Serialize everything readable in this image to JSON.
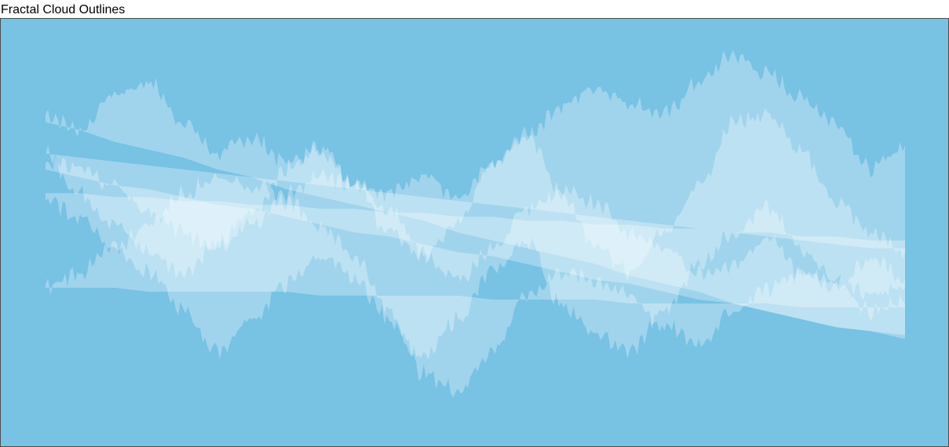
{
  "title": "Fractal Cloud Outlines",
  "colors": {
    "sky": "#78c2e4",
    "border": "#4d4d4d",
    "cloud": "#ffffff"
  },
  "chart_data": {
    "type": "area",
    "title": "Fractal Cloud Outlines",
    "xlabel": "",
    "ylabel": "",
    "axes_visible": false,
    "grid": false,
    "legend": "none",
    "fill_opacity": 0.3,
    "x_range": [
      0,
      100
    ],
    "y_range": [
      0,
      100
    ],
    "series": [
      {
        "x": [
          0,
          4,
          8,
          12,
          16,
          20,
          24,
          28,
          32,
          36,
          40,
          44,
          48,
          52,
          56,
          60,
          64,
          68,
          72,
          76,
          80,
          84,
          88,
          92,
          96,
          100
        ],
        "y": [
          80,
          76,
          85,
          88,
          78,
          70,
          74,
          68,
          71,
          63,
          60,
          65,
          58,
          67,
          75,
          82,
          87,
          83,
          80,
          88,
          95,
          90,
          84,
          78,
          66,
          72
        ],
        "baseline": [
          78,
          76,
          73,
          71,
          69,
          66,
          64,
          61,
          59,
          57,
          55,
          53,
          50,
          48,
          46,
          44,
          42,
          39,
          37,
          35,
          32,
          30,
          28,
          26,
          25,
          24
        ]
      },
      {
        "x": [
          0,
          4,
          8,
          12,
          16,
          20,
          24,
          28,
          32,
          36,
          40,
          44,
          48,
          52,
          56,
          60,
          64,
          68,
          72,
          76,
          80,
          84,
          88,
          92,
          96,
          100
        ],
        "y": [
          70,
          60,
          52,
          45,
          40,
          47,
          55,
          66,
          72,
          62,
          50,
          44,
          52,
          68,
          75,
          60,
          46,
          40,
          50,
          62,
          78,
          80,
          70,
          58,
          50,
          45
        ],
        "baseline": [
          70,
          69,
          68,
          67,
          66,
          65,
          64,
          63,
          62,
          61,
          60,
          59,
          58,
          57,
          56,
          55,
          54,
          53,
          52,
          51,
          50,
          49,
          48,
          47,
          46,
          46
        ]
      },
      {
        "x": [
          0,
          4,
          8,
          12,
          16,
          20,
          24,
          28,
          32,
          36,
          40,
          44,
          48,
          52,
          56,
          60,
          64,
          68,
          72,
          76,
          80,
          84,
          88,
          92,
          96,
          100
        ],
        "y": [
          58,
          54,
          46,
          40,
          30,
          20,
          28,
          37,
          44,
          38,
          28,
          18,
          28,
          40,
          48,
          32,
          24,
          20,
          30,
          42,
          50,
          56,
          46,
          38,
          34,
          36
        ],
        "baseline": [
          60,
          60,
          59,
          59,
          58,
          58,
          57,
          57,
          56,
          56,
          55,
          55,
          54,
          54,
          53,
          53,
          52,
          52,
          51,
          51,
          50,
          50,
          49,
          49,
          48,
          48
        ]
      },
      {
        "x": [
          0,
          4,
          8,
          12,
          16,
          20,
          24,
          28,
          32,
          36,
          40,
          44,
          48,
          52,
          56,
          60,
          64,
          68,
          72,
          76,
          80,
          84,
          88,
          92,
          96,
          100
        ],
        "y": [
          36,
          40,
          46,
          52,
          60,
          64,
          62,
          58,
          52,
          44,
          30,
          14,
          10,
          20,
          34,
          40,
          38,
          34,
          26,
          22,
          30,
          36,
          40,
          38,
          30,
          32
        ],
        "baseline": [
          36,
          36,
          36,
          35,
          35,
          35,
          35,
          35,
          34,
          34,
          34,
          34,
          34,
          33,
          33,
          33,
          33,
          32,
          32,
          32,
          32,
          32,
          31,
          31,
          31,
          31
        ]
      },
      {
        "x": [
          0,
          4,
          8,
          12,
          16,
          20,
          24,
          28,
          32,
          36,
          40,
          44,
          48,
          52,
          56,
          60,
          64,
          68,
          72,
          76,
          80,
          84,
          88,
          92,
          96,
          100
        ],
        "y": [
          68,
          66,
          62,
          55,
          50,
          46,
          52,
          60,
          64,
          62,
          56,
          44,
          38,
          46,
          56,
          60,
          58,
          50,
          46,
          40,
          42,
          48,
          40,
          36,
          44,
          38
        ],
        "baseline": [
          66,
          64,
          62,
          61,
          59,
          57,
          56,
          54,
          52,
          50,
          49,
          47,
          45,
          44,
          42,
          40,
          38,
          37,
          35,
          33,
          32,
          30,
          28,
          26,
          25,
          23
        ]
      }
    ]
  }
}
